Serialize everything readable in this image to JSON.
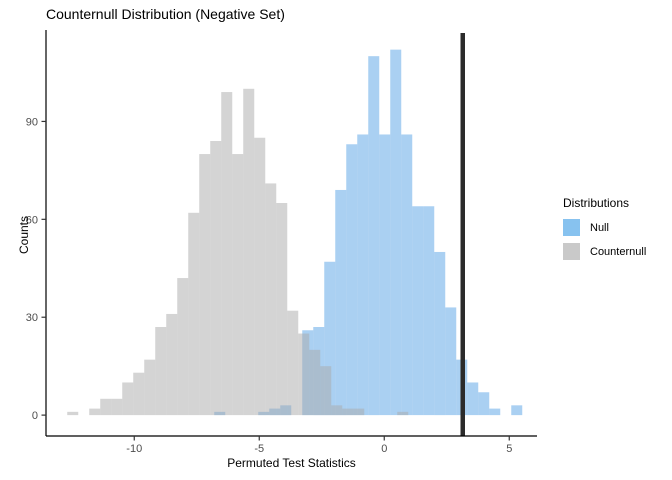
{
  "chart_data": {
    "type": "bar",
    "subtype": "overlaid-histograms",
    "title": "Counternull Distribution (Negative Set)",
    "xlabel": "Permuted Test Statistics",
    "ylabel": "Counts",
    "x_ticks": [
      -10,
      -5,
      0,
      5
    ],
    "y_ticks": [
      0,
      30,
      60,
      90
    ],
    "x_domain": [
      -13.53,
      6.11
    ],
    "y_domain": [
      -6.4,
      117.1
    ],
    "grid": "off",
    "theme": "classic (axis lines only, no panel grid)",
    "binwidth": 0.44,
    "series": [
      {
        "name": "Null",
        "fill": "#55A1E5",
        "fill_opacity": 0.5,
        "x_start": -6.8,
        "counts": [
          1,
          0,
          0,
          0,
          1,
          2,
          3,
          0,
          26,
          27,
          47,
          69,
          83,
          86,
          110,
          86,
          112,
          86,
          64,
          64,
          50,
          33,
          17,
          10,
          7,
          2,
          0,
          3
        ]
      },
      {
        "name": "Counternull",
        "fill": "#A9A9A9",
        "fill_opacity": 0.5,
        "x_start": -12.68,
        "counts": [
          1,
          0,
          2,
          5,
          5,
          10,
          13,
          17,
          27,
          31,
          42,
          62,
          80,
          84,
          99,
          80,
          100,
          85,
          71,
          65,
          32,
          25,
          20,
          15,
          3,
          2,
          2,
          0,
          0,
          0,
          1
        ]
      }
    ],
    "vline": {
      "x": 3.14,
      "color": "#2B2B2B",
      "stroke_width": 4.5
    },
    "axis_color": "#000000",
    "tick_color": "#333333",
    "tick_label_color": "#4D4D4D",
    "legend_position": "right"
  },
  "legend": {
    "title": "Distributions",
    "items": [
      {
        "label": "Null",
        "swatch_color": "#87C2EF"
      },
      {
        "label": "Counternull",
        "swatch_color": "#C9C9C9"
      }
    ]
  }
}
